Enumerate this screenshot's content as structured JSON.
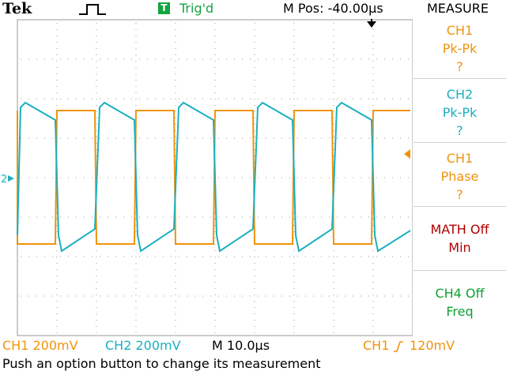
{
  "header": {
    "brand": "Tek",
    "trigger_badge": "T",
    "trigger_status": "Trig'd",
    "mpos": "M Pos: -40.00µs",
    "menu_title": "MEASURE"
  },
  "icons": {
    "pulse": "pulse-icon",
    "trigger_position": "trigger-position-marker-icon",
    "ch2_ground": "ch2-ground-marker-icon",
    "trigger_level": "trigger-level-marker-icon"
  },
  "colors": {
    "ch1": "#f0930a",
    "ch2": "#1ab0c0",
    "math": "#b00000",
    "ch4": "#10a030",
    "grid": "#9a9a9a"
  },
  "markers": {
    "ch2_ground_label": "2"
  },
  "measure_options": [
    {
      "source": "CH1",
      "type": "Pk-Pk",
      "value": "?"
    },
    {
      "source": "CH2",
      "type": "Pk-Pk",
      "value": "?"
    },
    {
      "source": "CH1",
      "type": "Phase",
      "value": "?"
    },
    {
      "source": "MATH Off",
      "type": "Min",
      "value": ""
    },
    {
      "source": "CH4 Off",
      "type": "Freq",
      "value": ""
    }
  ],
  "status": {
    "ch1": "CH1  200mV",
    "ch2": "CH2  200mV",
    "timebase": "M 10.0µs",
    "trigger_source": "CH1",
    "trigger_slope_icon": "rising-edge-icon",
    "trigger_level": "120mV"
  },
  "message": "Push an option button to change its measurement"
}
